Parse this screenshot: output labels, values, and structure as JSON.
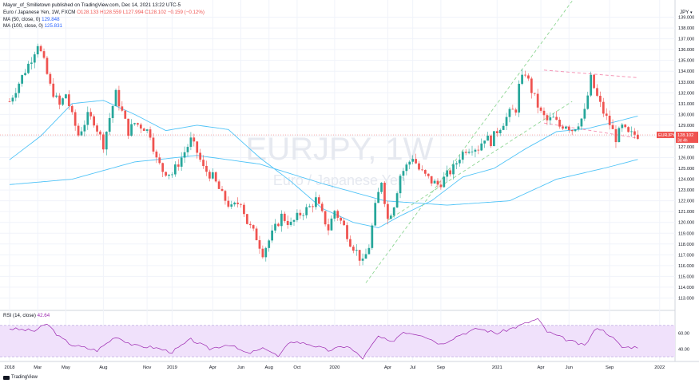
{
  "header": {
    "author_line": "Mayor_of_Smilletown published on TradingView.com, Dec 14, 2021 13:22 UTC-5",
    "symbol_line": "Euro / Japanese Yen, 1W, FXCM",
    "ohlc": {
      "o": "O128.133",
      "h": "H128.559",
      "l": "L127.994",
      "c": "C128.102",
      "chg": "−0.159 (−0.12%)"
    },
    "ma50_label": "MA (50, close, 0)",
    "ma50_value": "129.848",
    "ma100_label": "MA (100, close, 0)",
    "ma100_value": "125.831",
    "currency": "JPY",
    "currency_icon": "chevron-down-icon"
  },
  "watermark": {
    "symbol": "EURJPY, 1W",
    "name": "Euro / Japanese Yen"
  },
  "price_tag": {
    "symbol": "EURJPY",
    "price": "128.102",
    "countdown": "3d 4h"
  },
  "rsi_label": "RSI (14, close)",
  "rsi_value": "42.64",
  "footer": {
    "logo_text": "TradingView",
    "logo_icon": "tradingview-logo-icon"
  },
  "colors": {
    "up": "#26a69a",
    "down": "#ef5350",
    "ma": "#4fc3f7",
    "rsi_line": "#9c27b0",
    "rsi_band": "#f0e1fb",
    "channel": "#8fd694",
    "wedge": "#f48fb1"
  },
  "chart_data": [
    {
      "type": "candlestick",
      "ylim": [
        112,
        140
      ],
      "y_ticks": [
        "113.000",
        "114.000",
        "115.000",
        "116.000",
        "117.000",
        "118.000",
        "119.000",
        "120.000",
        "121.000",
        "122.000",
        "123.000",
        "124.000",
        "125.000",
        "126.000",
        "127.000",
        "128.000",
        "129.000",
        "130.000",
        "131.000",
        "132.000",
        "133.000",
        "134.000",
        "135.000",
        "136.000",
        "137.000",
        "138.000",
        "139.000"
      ],
      "x_ticks": [
        "2018",
        "Mar",
        "May",
        "Aug",
        "Nov",
        "2019",
        "Apr",
        "Jun",
        "Aug",
        "Oct",
        "2020",
        "Apr",
        "Jul",
        "Sep",
        "2021",
        "Apr",
        "Jun",
        "Sep",
        "2022"
      ],
      "x_tick_index": [
        0,
        9,
        18,
        30,
        44,
        52,
        65,
        74,
        83,
        92,
        104,
        121,
        129,
        138,
        156,
        170,
        179,
        192,
        208
      ],
      "bars": 206,
      "path": [
        [
          0,
          131.2
        ],
        [
          4,
          133.5
        ],
        [
          7,
          135.2
        ],
        [
          9,
          136.6
        ],
        [
          11,
          134.8
        ],
        [
          13,
          132.6
        ],
        [
          16,
          130.8
        ],
        [
          18,
          131.9
        ],
        [
          20,
          129.8
        ],
        [
          22,
          128.1
        ],
        [
          25,
          129.8
        ],
        [
          27,
          129.4
        ],
        [
          30,
          127.2
        ],
        [
          32,
          129.7
        ],
        [
          34,
          131.9
        ],
        [
          36,
          130.2
        ],
        [
          38,
          128.4
        ],
        [
          40,
          129.2
        ],
        [
          43,
          128.8
        ],
        [
          45,
          128.2
        ],
        [
          47,
          125.8
        ],
        [
          49,
          124.8
        ],
        [
          52,
          124.5
        ],
        [
          55,
          126.0
        ],
        [
          58,
          127.6
        ],
        [
          60,
          126.5
        ],
        [
          62,
          125.0
        ],
        [
          65,
          124.2
        ],
        [
          68,
          122.5
        ],
        [
          71,
          121.3
        ],
        [
          74,
          122.0
        ],
        [
          76,
          120.0
        ],
        [
          79,
          118.6
        ],
        [
          81,
          117.2
        ],
        [
          84,
          118.9
        ],
        [
          87,
          120.6
        ],
        [
          90,
          119.8
        ],
        [
          93,
          120.8
        ],
        [
          96,
          121.4
        ],
        [
          98,
          122.1
        ],
        [
          100,
          120.7
        ],
        [
          102,
          119.4
        ],
        [
          104,
          121.1
        ],
        [
          107,
          119.6
        ],
        [
          109,
          118.2
        ],
        [
          111,
          117.3
        ],
        [
          113,
          116.2
        ],
        [
          115,
          117.8
        ],
        [
          117,
          121.4
        ],
        [
          119,
          123.9
        ],
        [
          121,
          120.3
        ],
        [
          123,
          121.7
        ],
        [
          125,
          124.4
        ],
        [
          127,
          125.2
        ],
        [
          129,
          126.1
        ],
        [
          131,
          124.9
        ],
        [
          133,
          124.3
        ],
        [
          135,
          123.8
        ],
        [
          137,
          123.5
        ],
        [
          138,
          123.7
        ],
        [
          140,
          124.4
        ],
        [
          142,
          125.0
        ],
        [
          144,
          126.1
        ],
        [
          146,
          126.8
        ],
        [
          148,
          127.0
        ],
        [
          150,
          126.9
        ],
        [
          152,
          127.9
        ],
        [
          154,
          127.5
        ],
        [
          156,
          128.5
        ],
        [
          158,
          129.3
        ],
        [
          160,
          130.1
        ],
        [
          162,
          130.5
        ],
        [
          163,
          132.6
        ],
        [
          165,
          133.9
        ],
        [
          167,
          132.2
        ],
        [
          168,
          131.5
        ],
        [
          170,
          130.1
        ],
        [
          172,
          129.4
        ],
        [
          174,
          129.6
        ],
        [
          176,
          128.9
        ],
        [
          178,
          129.1
        ],
        [
          180,
          128.6
        ],
        [
          181,
          128.9
        ],
        [
          183,
          129.6
        ],
        [
          184,
          130.2
        ],
        [
          186,
          133.3
        ],
        [
          188,
          131.6
        ],
        [
          190,
          130.2
        ],
        [
          192,
          129.1
        ],
        [
          194,
          127.8
        ],
        [
          196,
          128.8
        ],
        [
          198,
          128.1
        ],
        [
          200,
          128.15
        ],
        [
          201,
          128.102
        ]
      ],
      "ma50": [
        [
          0,
          125.8
        ],
        [
          10,
          128.0
        ],
        [
          20,
          131.0
        ],
        [
          30,
          131.3
        ],
        [
          40,
          130.0
        ],
        [
          50,
          128.5
        ],
        [
          60,
          129.0
        ],
        [
          70,
          128.6
        ],
        [
          80,
          126.0
        ],
        [
          90,
          123.8
        ],
        [
          100,
          121.3
        ],
        [
          110,
          120.0
        ],
        [
          118,
          119.5
        ],
        [
          125,
          120.6
        ],
        [
          135,
          122.0
        ],
        [
          145,
          124.2
        ],
        [
          155,
          125.0
        ],
        [
          165,
          126.8
        ],
        [
          175,
          128.4
        ],
        [
          185,
          128.7
        ],
        [
          195,
          129.4
        ],
        [
          201,
          129.85
        ]
      ],
      "ma100": [
        [
          0,
          123.5
        ],
        [
          20,
          124.0
        ],
        [
          40,
          125.6
        ],
        [
          60,
          126.2
        ],
        [
          80,
          125.4
        ],
        [
          100,
          123.6
        ],
        [
          120,
          122.0
        ],
        [
          140,
          121.6
        ],
        [
          160,
          122.0
        ],
        [
          175,
          124.0
        ],
        [
          190,
          125.0
        ],
        [
          201,
          125.83
        ]
      ],
      "channel_lines": [
        [
          [
            114,
            114.4
          ],
          [
            180,
            140.5
          ]
        ],
        [
          [
            121,
            120.2
          ],
          [
            180,
            131.2
          ]
        ]
      ],
      "wedge_lines": [
        [
          [
            171,
            134.1
          ],
          [
            201,
            133.4
          ]
        ],
        [
          [
            171,
            129.2
          ],
          [
            201,
            127.8
          ]
        ]
      ]
    },
    {
      "type": "line",
      "title": "RSI (14, close)",
      "ylim": [
        25,
        80
      ],
      "y_ticks": [
        40,
        60
      ],
      "band": [
        30,
        70
      ],
      "path": [
        [
          0,
          66
        ],
        [
          8,
          63
        ],
        [
          12,
          72
        ],
        [
          16,
          55
        ],
        [
          20,
          45
        ],
        [
          28,
          38
        ],
        [
          34,
          56
        ],
        [
          40,
          44
        ],
        [
          46,
          42
        ],
        [
          52,
          36
        ],
        [
          58,
          52
        ],
        [
          64,
          40
        ],
        [
          70,
          46
        ],
        [
          76,
          34
        ],
        [
          82,
          41
        ],
        [
          86,
          30
        ],
        [
          90,
          50
        ],
        [
          96,
          46
        ],
        [
          102,
          38
        ],
        [
          108,
          44
        ],
        [
          113,
          28
        ],
        [
          118,
          56
        ],
        [
          122,
          48
        ],
        [
          126,
          62
        ],
        [
          132,
          58
        ],
        [
          138,
          46
        ],
        [
          144,
          58
        ],
        [
          150,
          66
        ],
        [
          156,
          60
        ],
        [
          162,
          68
        ],
        [
          166,
          74
        ],
        [
          169,
          78
        ],
        [
          172,
          62
        ],
        [
          178,
          52
        ],
        [
          184,
          44
        ],
        [
          188,
          68
        ],
        [
          192,
          58
        ],
        [
          196,
          42
        ],
        [
          201,
          42.64
        ]
      ]
    }
  ]
}
